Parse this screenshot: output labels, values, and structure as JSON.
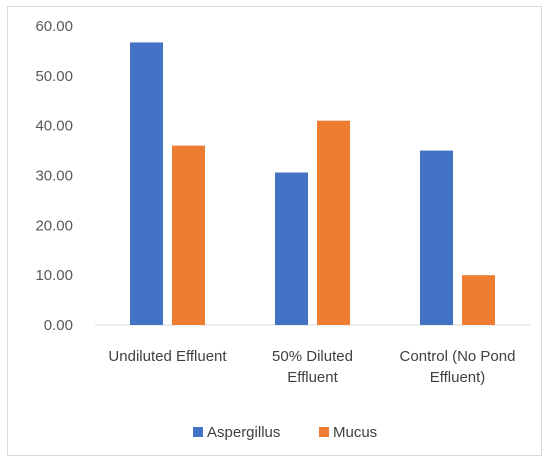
{
  "chart_data": {
    "type": "bar",
    "title": "",
    "xlabel": "",
    "ylabel": "",
    "categories": [
      [
        "Undiluted Effluent"
      ],
      [
        "50% Diluted",
        "Effluent"
      ],
      [
        "Control (No Pond",
        "Effluent)"
      ]
    ],
    "series": [
      {
        "name": "Aspergillus",
        "color": "#4472C4",
        "values": [
          56.7,
          30.6,
          35.0
        ]
      },
      {
        "name": "Mucus",
        "color": "#ED7D31",
        "values": [
          36.0,
          41.0,
          10.0
        ]
      }
    ],
    "ylim": [
      0,
      60
    ],
    "yticks": [
      "0.00",
      "10.00",
      "20.00",
      "30.00",
      "40.00",
      "50.00",
      "60.00"
    ],
    "grid": false,
    "legend_position": "bottom"
  }
}
